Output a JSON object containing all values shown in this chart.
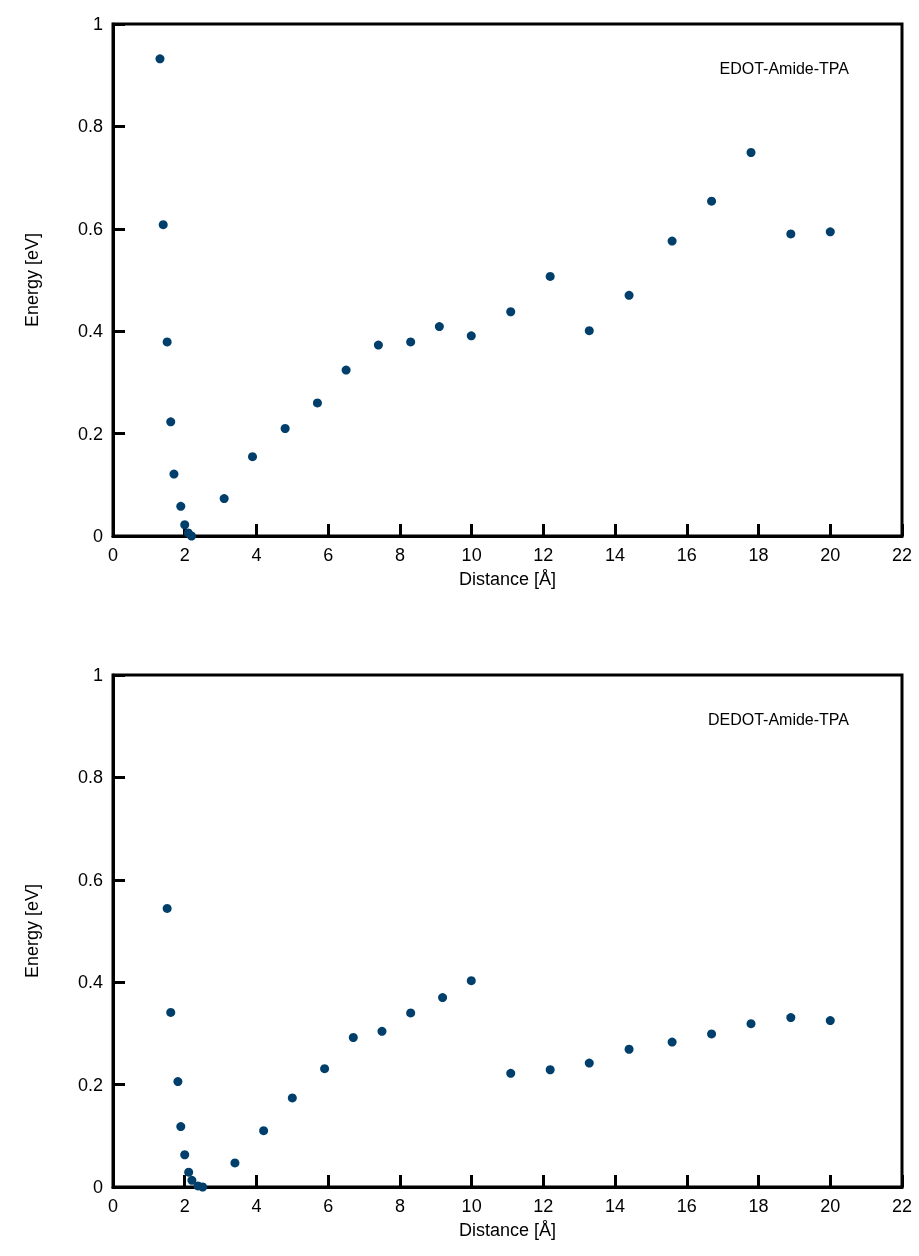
{
  "chart_data": [
    {
      "type": "scatter",
      "xlabel": "Distance [Å]",
      "ylabel": "Energy [eV]",
      "annotations": [
        "EDOT-Amide-TPA"
      ],
      "xlim": [
        0,
        22
      ],
      "xticks": [
        0,
        2,
        4,
        6,
        8,
        10,
        12,
        14,
        16,
        18,
        20,
        22
      ],
      "ylim": [
        0,
        1
      ],
      "yticks": [
        0,
        0.2,
        0.4,
        0.6,
        0.8,
        1
      ],
      "grid": false,
      "marker": "circle",
      "series": [
        {
          "color": "#003f6b",
          "x": [
            1.31,
            1.4,
            1.51,
            1.61,
            1.7,
            1.89,
            2.0,
            2.1,
            2.19,
            3.1,
            3.89,
            4.8,
            5.7,
            6.5,
            7.4,
            8.3,
            9.1,
            9.99,
            11.09,
            12.19,
            13.28,
            14.39,
            15.59,
            16.69,
            17.79,
            18.9,
            20.0
          ],
          "values": [
            0.932,
            0.608,
            0.379,
            0.223,
            0.121,
            0.058,
            0.022,
            0.006,
            0,
            0.073,
            0.155,
            0.21,
            0.26,
            0.324,
            0.373,
            0.379,
            0.409,
            0.391,
            0.438,
            0.507,
            0.401,
            0.47,
            0.576,
            0.654,
            0.749,
            0.59,
            0.594
          ]
        }
      ]
    },
    {
      "type": "scatter",
      "xlabel": "Distance [Å]",
      "ylabel": "Energy [eV]",
      "annotations": [
        "DEDOT-Amide-TPA"
      ],
      "xlim": [
        0,
        22
      ],
      "xticks": [
        0,
        2,
        4,
        6,
        8,
        10,
        12,
        14,
        16,
        18,
        20,
        22
      ],
      "ylim": [
        0,
        1
      ],
      "yticks": [
        0,
        0.2,
        0.4,
        0.6,
        0.8,
        1
      ],
      "grid": false,
      "marker": "circle",
      "series": [
        {
          "color": "#003f6b",
          "x": [
            1.51,
            1.61,
            1.81,
            1.89,
            2.0,
            2.11,
            2.2,
            2.37,
            2.5,
            3.4,
            4.2,
            5.0,
            5.9,
            6.7,
            7.5,
            8.3,
            9.19,
            9.99,
            11.09,
            12.19,
            13.28,
            14.39,
            15.59,
            16.69,
            17.79,
            18.9,
            20.0
          ],
          "values": [
            0.544,
            0.341,
            0.206,
            0.118,
            0.063,
            0.029,
            0.013,
            0.002,
            0,
            0.047,
            0.11,
            0.174,
            0.231,
            0.292,
            0.304,
            0.34,
            0.37,
            0.403,
            0.222,
            0.229,
            0.242,
            0.269,
            0.283,
            0.299,
            0.319,
            0.331,
            0.325
          ]
        }
      ]
    }
  ]
}
